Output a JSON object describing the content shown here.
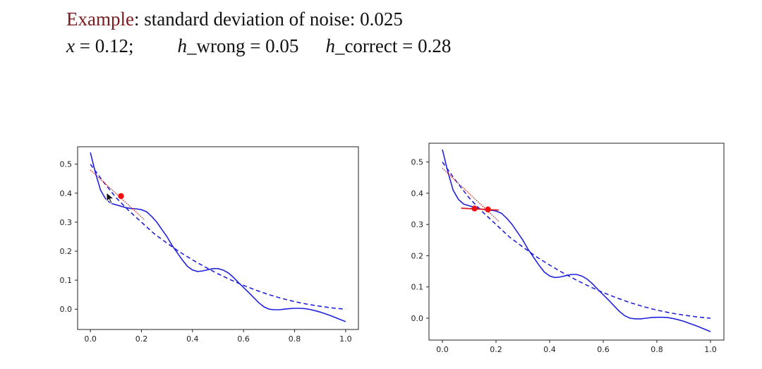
{
  "header": {
    "example_word": "Example",
    "line1_rest": ": standard deviation of noise: 0.025",
    "x_var": "x",
    "x_value": " = 0.12;",
    "h_wrong_var": "h",
    "h_wrong_rest": "_wrong = 0.05",
    "h_correct_var": "h",
    "h_correct_rest": "_correct = 0.28"
  },
  "colors": {
    "accent": "#7a1a1f",
    "curve": "#2222dd",
    "secant": "#dd1a1a",
    "marker": "#ee1111"
  },
  "icons": {
    "pointer": "mouse-cursor-icon"
  },
  "chart_data": [
    {
      "type": "line",
      "xlim": [
        -0.05,
        1.05
      ],
      "ylim": [
        -0.07,
        0.56
      ],
      "xticks": [
        "0.0",
        "0.2",
        "0.4",
        "0.6",
        "0.8",
        "1.0"
      ],
      "yticks": [
        "0.0",
        "0.1",
        "0.2",
        "0.3",
        "0.4",
        "0.5"
      ],
      "grid": false,
      "series": [
        {
          "style": "solid",
          "x": [
            0.0,
            0.02,
            0.04,
            0.06,
            0.08,
            0.1,
            0.12,
            0.14,
            0.16,
            0.18,
            0.2,
            0.22,
            0.24,
            0.26,
            0.28,
            0.3,
            0.32,
            0.34,
            0.36,
            0.38,
            0.4,
            0.42,
            0.44,
            0.46,
            0.48,
            0.5,
            0.52,
            0.54,
            0.56,
            0.58,
            0.6,
            0.62,
            0.64,
            0.66,
            0.68,
            0.7,
            0.72,
            0.74,
            0.76,
            0.78,
            0.8,
            0.82,
            0.84,
            0.86,
            0.88,
            0.9,
            0.92,
            0.94,
            0.96,
            0.98,
            1.0
          ],
          "y": [
            0.54,
            0.47,
            0.41,
            0.38,
            0.365,
            0.36,
            0.355,
            0.35,
            0.347,
            0.346,
            0.343,
            0.336,
            0.32,
            0.3,
            0.275,
            0.25,
            0.22,
            0.195,
            0.17,
            0.148,
            0.135,
            0.13,
            0.132,
            0.136,
            0.14,
            0.14,
            0.135,
            0.125,
            0.11,
            0.092,
            0.075,
            0.058,
            0.04,
            0.022,
            0.008,
            0.0,
            -0.002,
            -0.002,
            0.0,
            0.002,
            0.003,
            0.003,
            0.002,
            -0.001,
            -0.005,
            -0.01,
            -0.016,
            -0.022,
            -0.029,
            -0.036,
            -0.043
          ]
        },
        {
          "style": "dashed",
          "x": [
            0.0,
            0.05,
            0.1,
            0.15,
            0.2,
            0.25,
            0.3,
            0.35,
            0.4,
            0.45,
            0.5,
            0.55,
            0.6,
            0.65,
            0.7,
            0.75,
            0.8,
            0.85,
            0.9,
            0.95,
            1.0
          ],
          "y": [
            0.5,
            0.44,
            0.385,
            0.34,
            0.3,
            0.26,
            0.228,
            0.197,
            0.17,
            0.145,
            0.122,
            0.101,
            0.082,
            0.065,
            0.05,
            0.037,
            0.026,
            0.017,
            0.01,
            0.004,
            0.0
          ]
        }
      ],
      "secant": {
        "x": [
          0.0,
          0.21
        ],
        "y": [
          0.48,
          0.31
        ]
      },
      "markers": [
        {
          "x": 0.12,
          "y": 0.39
        }
      ]
    },
    {
      "type": "line",
      "xlim": [
        -0.05,
        1.05
      ],
      "ylim": [
        -0.07,
        0.56
      ],
      "xticks": [
        "0.0",
        "0.2",
        "0.4",
        "0.6",
        "0.8",
        "1.0"
      ],
      "yticks": [
        "0.0",
        "0.1",
        "0.2",
        "0.3",
        "0.4",
        "0.5"
      ],
      "grid": false,
      "series": [
        {
          "style": "solid",
          "x": [
            0.0,
            0.02,
            0.04,
            0.06,
            0.08,
            0.1,
            0.12,
            0.14,
            0.16,
            0.18,
            0.2,
            0.22,
            0.24,
            0.26,
            0.28,
            0.3,
            0.32,
            0.34,
            0.36,
            0.38,
            0.4,
            0.42,
            0.44,
            0.46,
            0.48,
            0.5,
            0.52,
            0.54,
            0.56,
            0.58,
            0.6,
            0.62,
            0.64,
            0.66,
            0.68,
            0.7,
            0.72,
            0.74,
            0.76,
            0.78,
            0.8,
            0.82,
            0.84,
            0.86,
            0.88,
            0.9,
            0.92,
            0.94,
            0.96,
            0.98,
            1.0
          ],
          "y": [
            0.54,
            0.47,
            0.41,
            0.38,
            0.365,
            0.36,
            0.355,
            0.35,
            0.347,
            0.346,
            0.343,
            0.336,
            0.32,
            0.3,
            0.275,
            0.25,
            0.22,
            0.195,
            0.17,
            0.148,
            0.135,
            0.13,
            0.132,
            0.136,
            0.14,
            0.14,
            0.135,
            0.125,
            0.11,
            0.092,
            0.075,
            0.058,
            0.04,
            0.022,
            0.008,
            0.0,
            -0.002,
            -0.002,
            0.0,
            0.002,
            0.003,
            0.003,
            0.002,
            -0.001,
            -0.005,
            -0.01,
            -0.016,
            -0.022,
            -0.029,
            -0.036,
            -0.043
          ]
        },
        {
          "style": "dashed",
          "x": [
            0.0,
            0.05,
            0.1,
            0.15,
            0.2,
            0.25,
            0.3,
            0.35,
            0.4,
            0.45,
            0.5,
            0.55,
            0.6,
            0.65,
            0.7,
            0.75,
            0.8,
            0.85,
            0.9,
            0.95,
            1.0
          ],
          "y": [
            0.5,
            0.44,
            0.385,
            0.34,
            0.3,
            0.26,
            0.228,
            0.197,
            0.17,
            0.145,
            0.122,
            0.101,
            0.082,
            0.065,
            0.05,
            0.037,
            0.026,
            0.017,
            0.01,
            0.004,
            0.0
          ]
        }
      ],
      "secant": {
        "x": [
          0.0,
          0.21
        ],
        "y": [
          0.48,
          0.31
        ]
      },
      "tangent": {
        "x": [
          0.07,
          0.21
        ],
        "y": [
          0.352,
          0.346
        ]
      },
      "markers": [
        {
          "x": 0.12,
          "y": 0.351
        },
        {
          "x": 0.17,
          "y": 0.348
        }
      ]
    }
  ]
}
